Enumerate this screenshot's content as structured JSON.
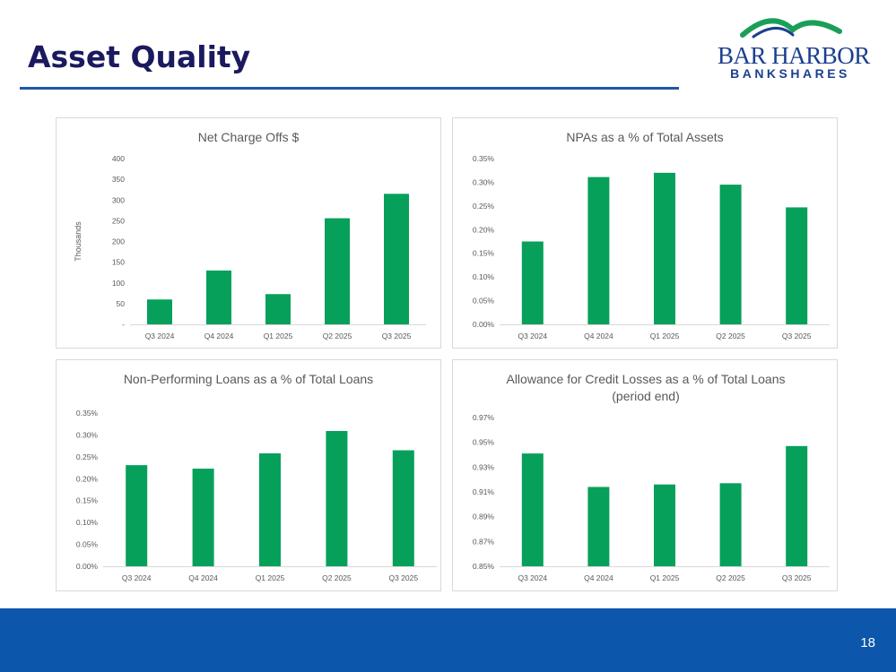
{
  "title": "Asset Quality",
  "logo": {
    "line1": "BAR HARBOR",
    "line2": "BANKSHARES",
    "color": "#1b3f8f",
    "accent": "#1a9f58"
  },
  "footer": {
    "page_number": "18",
    "color": "#0c56ab"
  },
  "bar_color": "#06a05a",
  "chart_data": [
    {
      "type": "bar",
      "title": "Net Charge Offs $",
      "xlabel": "",
      "ylabel": "Thousands",
      "categories": [
        "Q3 2024",
        "Q4 2024",
        "Q1 2025",
        "Q2 2025",
        "Q3 2025"
      ],
      "values": [
        60,
        130,
        73,
        256,
        315
      ],
      "ylim": [
        0,
        400
      ],
      "yticks": [
        0,
        50,
        100,
        150,
        200,
        250,
        300,
        350,
        400
      ],
      "ytick_labels": [
        "-",
        "50",
        "100",
        "150",
        "200",
        "250",
        "300",
        "350",
        "400"
      ],
      "grid": false
    },
    {
      "type": "bar",
      "title": "NPAs as a % of Total Assets",
      "xlabel": "",
      "ylabel": "",
      "categories": [
        "Q3 2024",
        "Q4 2024",
        "Q1 2025",
        "Q2 2025",
        "Q3 2025"
      ],
      "values": [
        0.175,
        0.311,
        0.32,
        0.295,
        0.247
      ],
      "ylim": [
        0,
        0.35
      ],
      "yticks": [
        0,
        0.05,
        0.1,
        0.15,
        0.2,
        0.25,
        0.3,
        0.35
      ],
      "ytick_labels": [
        "0.00%",
        "0.05%",
        "0.10%",
        "0.15%",
        "0.20%",
        "0.25%",
        "0.30%",
        "0.35%"
      ],
      "grid": false
    },
    {
      "type": "bar",
      "title": "Non-Performing Loans as a % of Total Loans",
      "xlabel": "",
      "ylabel": "",
      "categories": [
        "Q3 2024",
        "Q4 2024",
        "Q1 2025",
        "Q2 2025",
        "Q3 2025"
      ],
      "values": [
        0.231,
        0.223,
        0.258,
        0.309,
        0.265
      ],
      "ylim": [
        0,
        0.35
      ],
      "yticks": [
        0,
        0.05,
        0.1,
        0.15,
        0.2,
        0.25,
        0.3,
        0.35
      ],
      "ytick_labels": [
        "0.00%",
        "0.05%",
        "0.10%",
        "0.15%",
        "0.20%",
        "0.25%",
        "0.30%",
        "0.35%"
      ],
      "grid": false
    },
    {
      "type": "bar",
      "title": "Allowance for Credit Losses as a % of Total Loans (period end)",
      "xlabel": "",
      "ylabel": "",
      "categories": [
        "Q3 2024",
        "Q4 2024",
        "Q1 2025",
        "Q2 2025",
        "Q3 2025"
      ],
      "values": [
        0.941,
        0.914,
        0.916,
        0.917,
        0.947
      ],
      "ylim": [
        0.85,
        0.97
      ],
      "yticks": [
        0.85,
        0.87,
        0.89,
        0.91,
        0.93,
        0.95,
        0.97
      ],
      "ytick_labels": [
        "0.85%",
        "0.87%",
        "0.89%",
        "0.91%",
        "0.93%",
        "0.95%",
        "0.97%"
      ],
      "grid": false
    }
  ]
}
